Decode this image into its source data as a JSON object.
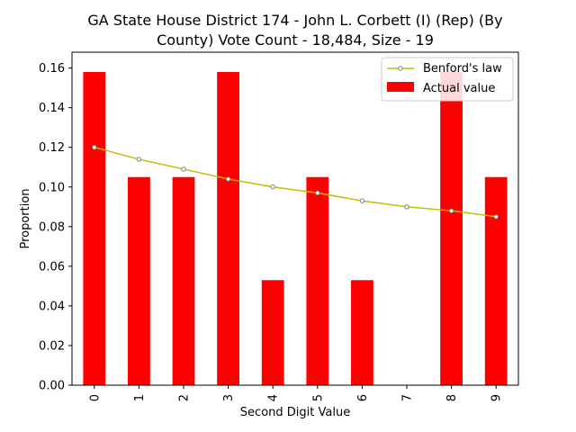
{
  "chart_data": {
    "type": "bar",
    "title_lines": [
      "GA State House District 174 - John L. Corbett (I) (Rep) (By",
      "County) Vote Count - 18,484, Size - 19"
    ],
    "xlabel": "Second Digit Value",
    "ylabel": "Proportion",
    "categories": [
      "0",
      "1",
      "2",
      "3",
      "4",
      "5",
      "6",
      "7",
      "8",
      "9"
    ],
    "ylim": [
      0.0,
      0.168
    ],
    "yticks": [
      0.0,
      0.02,
      0.04,
      0.06,
      0.08,
      0.1,
      0.12,
      0.14,
      0.16
    ],
    "ytick_labels": [
      "0.00",
      "0.02",
      "0.04",
      "0.06",
      "0.08",
      "0.10",
      "0.12",
      "0.14",
      "0.16"
    ],
    "grid": false,
    "legend_position": "top-right",
    "series": [
      {
        "name": "Actual value",
        "kind": "bar",
        "color": "#ff0000",
        "values": [
          0.158,
          0.105,
          0.105,
          0.158,
          0.053,
          0.105,
          0.053,
          0.0,
          0.158,
          0.105
        ]
      },
      {
        "name": "Benford's law",
        "kind": "line",
        "color": "#bfbf00",
        "marker_edge": "#808080",
        "values": [
          0.12,
          0.114,
          0.109,
          0.104,
          0.1,
          0.097,
          0.093,
          0.09,
          0.088,
          0.085
        ]
      }
    ]
  }
}
